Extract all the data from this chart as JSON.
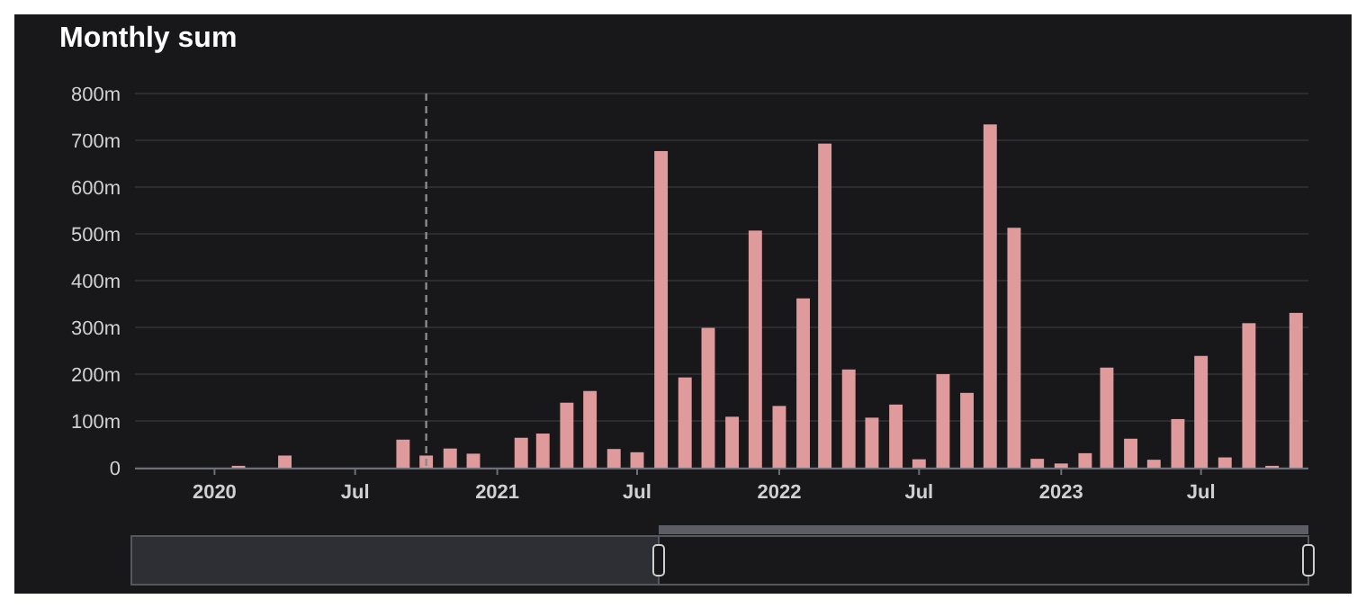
{
  "chart_data": {
    "type": "bar",
    "title": "Monthly sum",
    "x": [
      "2020-02",
      "2020-04",
      "2020-09",
      "2020-10",
      "2020-11",
      "2020-12",
      "2021-02",
      "2021-03",
      "2021-04",
      "2021-05",
      "2021-06",
      "2021-07",
      "2021-08",
      "2021-09",
      "2021-10",
      "2021-11",
      "2021-12",
      "2022-01",
      "2022-02",
      "2022-03",
      "2022-04",
      "2022-05",
      "2022-06",
      "2022-07",
      "2022-08",
      "2022-09",
      "2022-10",
      "2022-11",
      "2022-12",
      "2023-01",
      "2023-02",
      "2023-03",
      "2023-04",
      "2023-05",
      "2023-06",
      "2023-07",
      "2023-08",
      "2023-09",
      "2023-10",
      "2023-11"
    ],
    "values": [
      4,
      26,
      60,
      26,
      41,
      30,
      64,
      73,
      139,
      164,
      40,
      33,
      677,
      193,
      299,
      109,
      507,
      132,
      362,
      693,
      210,
      107,
      135,
      18,
      200,
      160,
      734,
      513,
      19,
      9,
      31,
      214,
      62,
      17,
      104,
      239,
      22,
      309,
      4,
      331
    ],
    "color": "#df9a9c",
    "xlim": [
      "2019-09-20",
      "2023-11-17"
    ],
    "xticks": [
      {
        "value": "2020",
        "label": "2020"
      },
      {
        "value": "2020-07",
        "label": "Jul"
      },
      {
        "value": "2021",
        "label": "2021"
      },
      {
        "value": "2021-07",
        "label": "Jul"
      },
      {
        "value": "2022",
        "label": "2022"
      },
      {
        "value": "2022-07",
        "label": "Jul"
      },
      {
        "value": "2023",
        "label": "2023"
      },
      {
        "value": "2023-07",
        "label": "Jul"
      }
    ],
    "ylim": [
      0,
      800
    ],
    "yticks": [
      0,
      {
        "value": 100,
        "label": "100m"
      },
      {
        "value": 200,
        "label": "200m"
      },
      {
        "value": 300,
        "label": "300m"
      },
      {
        "value": 400,
        "label": "400m"
      },
      {
        "value": 500,
        "label": "500m"
      },
      {
        "value": 600,
        "label": "600m"
      },
      {
        "value": 700,
        "label": "700m"
      },
      {
        "value": 800,
        "label": "800m"
      }
    ],
    "grid": "y",
    "ref_lines": [
      {
        "axis": "x",
        "value": "2020-10",
        "line_style": "dashed",
        "color": "#8a8a8a"
      }
    ]
  }
}
